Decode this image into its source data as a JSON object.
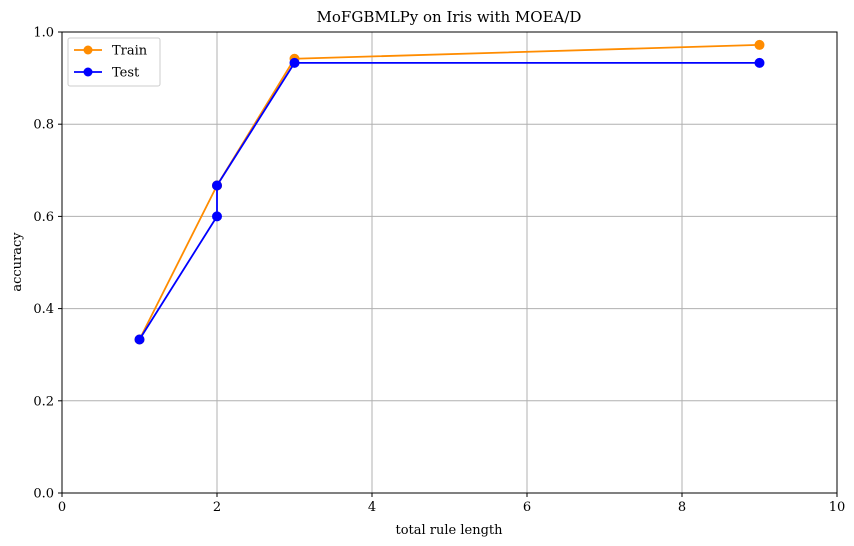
{
  "chart_data": {
    "type": "line",
    "title": "MoFGBMLPy on Iris with MOEA/D",
    "xlabel": "total rule length",
    "ylabel": "accuracy",
    "xlim": [
      0,
      10
    ],
    "ylim": [
      0.0,
      1.0
    ],
    "xticks": [
      0,
      2,
      4,
      6,
      8,
      10
    ],
    "xtick_labels": [
      "0",
      "2",
      "4",
      "6",
      "8",
      "10"
    ],
    "yticks": [
      0.0,
      0.2,
      0.4,
      0.6,
      0.8,
      1.0
    ],
    "ytick_labels": [
      "0.0",
      "0.2",
      "0.4",
      "0.6",
      "0.8",
      "1.0"
    ],
    "grid": true,
    "legend_position": "top-left",
    "series": [
      {
        "name": "Train",
        "color": "#ff8c00",
        "marker": "circle",
        "x": [
          1,
          2,
          2,
          3,
          9
        ],
        "y": [
          0.333,
          0.667,
          0.667,
          0.942,
          0.972
        ]
      },
      {
        "name": "Test",
        "color": "#0000ff",
        "marker": "circle",
        "x": [
          1,
          2,
          2,
          3,
          9
        ],
        "y": [
          0.333,
          0.6,
          0.667,
          0.933,
          0.933
        ]
      }
    ]
  }
}
